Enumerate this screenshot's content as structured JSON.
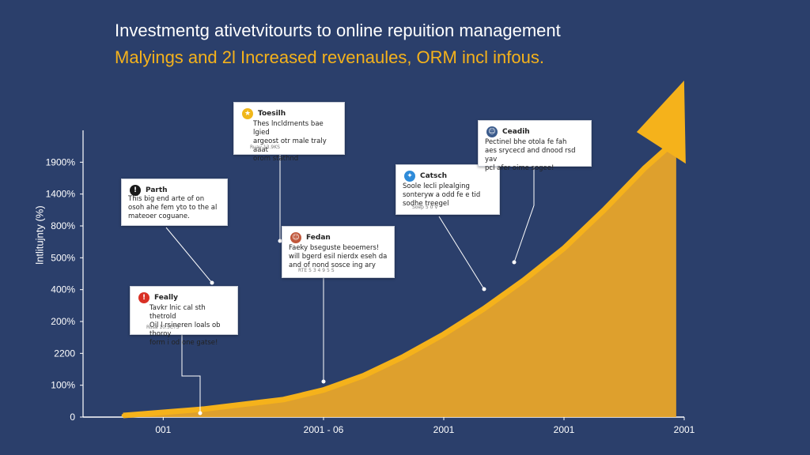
{
  "header": {
    "title": "Investmentg ativetvitourts to online repuition management",
    "subtitle": "Malyings and 2l Increased revenaules, ORM incl infous."
  },
  "colors": {
    "background": "#2b3f6b",
    "accent": "#f5b21b",
    "area": "#e8a52a",
    "text": "#ffffff"
  },
  "chart_data": {
    "type": "area",
    "ylabel": "lntlitujnty (%)",
    "y_ticks": [
      "0",
      "100%",
      "2200",
      "200%",
      "400%",
      "500%",
      "800%",
      "1400%",
      "1900%"
    ],
    "x_ticks": [
      "001",
      "2001 - 06",
      "2001",
      "2001",
      "2001"
    ],
    "x_tick_positions": [
      0.5,
      2.5,
      4,
      5.5,
      7
    ],
    "x_range": [
      -0.5,
      7
    ],
    "y_range": [
      0,
      9
    ],
    "series": [
      {
        "x": [
          0,
          1,
          2,
          2.5,
          3,
          3.5,
          4,
          4.5,
          5,
          5.5,
          6,
          6.5,
          6.9
        ],
        "y": [
          0.05,
          0.25,
          0.55,
          0.85,
          1.3,
          1.9,
          2.6,
          3.4,
          4.3,
          5.3,
          6.5,
          7.8,
          8.7
        ]
      }
    ]
  },
  "annotations": [
    {
      "icon": "!",
      "icon_color": "#1a1a1a",
      "name": "Parth",
      "lines": [
        "This big end arte of on",
        "osoh ahe fem yto to the al",
        "mateoer coguane."
      ],
      "meta": ""
    },
    {
      "icon": "!",
      "icon_color": "#d93025",
      "name": "Feally",
      "lines": [
        "Tavkr lnic cal sth thetrold",
        "Oil l rsineren loals ob thoroy",
        "form i od one gatse!"
      ],
      "meta": "Rusa  10.5CTS"
    },
    {
      "icon": "★",
      "icon_color": "#f0b71b",
      "name": "Toesilh",
      "lines": [
        "Thes lncldrnents bae lgied",
        "argeost otr male traly aaat",
        "orom stathnd"
      ],
      "meta": "Ruay  13.9KS"
    },
    {
      "icon": "☺",
      "icon_color": "#c0573b",
      "name": "Fedan",
      "lines": [
        "Faeky bseguste beoemers!",
        "will bgerd esil nierdx eseh da",
        "and of nond sosce ing ary"
      ],
      "meta": "RTE  5 3 4 9 5 S"
    },
    {
      "icon": "✦",
      "icon_color": "#2e8bd9",
      "name": "Catsch",
      "lines": [
        "Soole lecli plealging",
        "sonteryw a odd fe e tid",
        "sodhe treegel"
      ],
      "meta": "Soep  5 0 V"
    },
    {
      "icon": "☺",
      "icon_color": "#3b5b8c",
      "name": "Ceadih",
      "lines": [
        "Pectinel bhe otola fe fah",
        "aes srycecd and dnood rsd yav",
        "pcl afer oime sogee!"
      ],
      "meta": ""
    }
  ]
}
